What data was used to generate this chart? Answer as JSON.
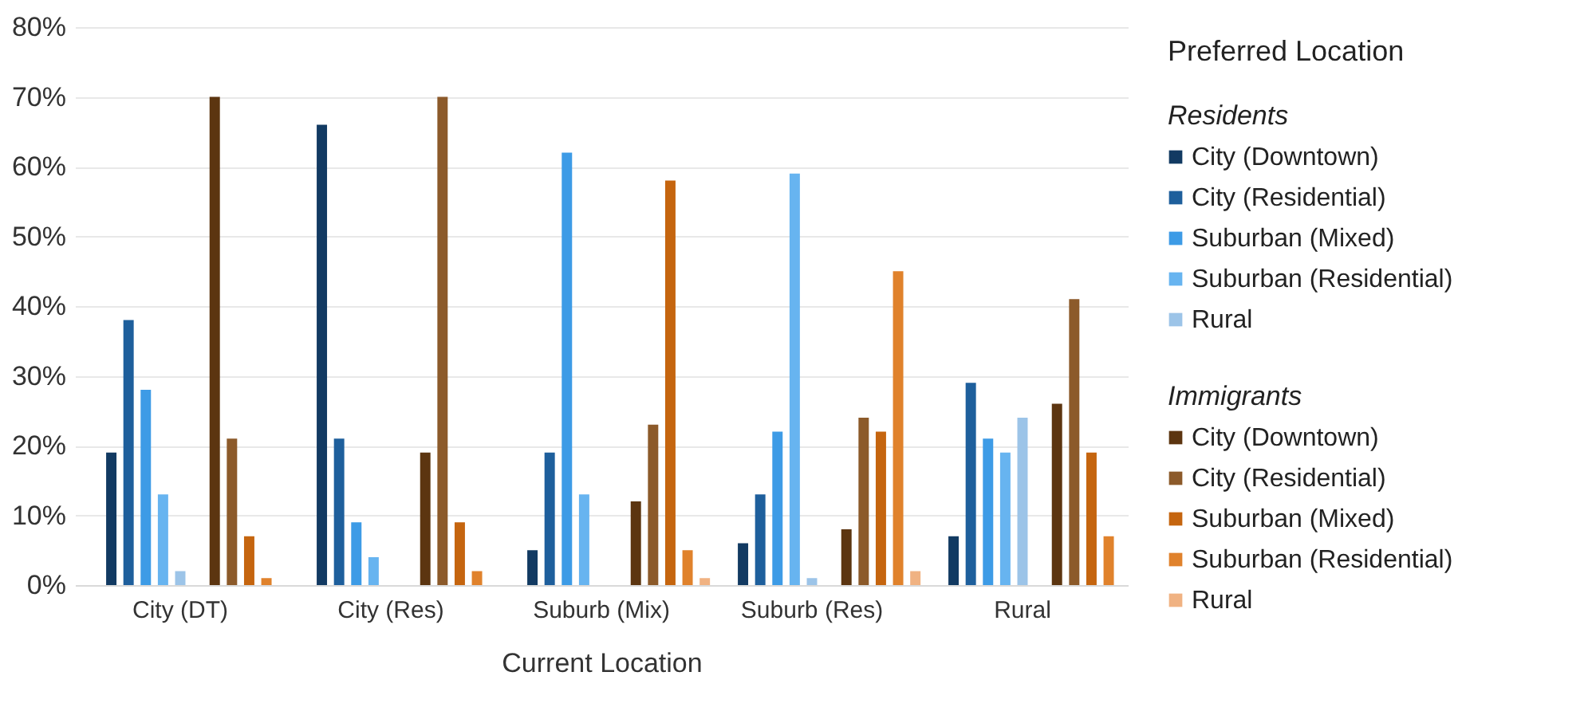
{
  "chart_data": {
    "type": "bar",
    "categories": [
      "City (DT)",
      "City (Res)",
      "Suburb (Mix)",
      "Suburb (Res)",
      "Rural"
    ],
    "xlabel": "Current Location",
    "legend_title": "Preferred Location",
    "annotations": [
      "Residents",
      "Immigrants"
    ],
    "series": [
      {
        "name": "City (Downtown)",
        "color": "#123a62",
        "values": [
          19,
          66,
          5,
          6,
          7
        ]
      },
      {
        "name": "City (Residential)",
        "color": "#1e5f9c",
        "values": [
          38,
          21,
          19,
          13,
          29
        ]
      },
      {
        "name": "Suburban (Mixed)",
        "color": "#3d9be6",
        "values": [
          28,
          9,
          62,
          22,
          21
        ]
      },
      {
        "name": "Suburban (Residential)",
        "color": "#67b4f0",
        "values": [
          13,
          4,
          13,
          59,
          19
        ]
      },
      {
        "name": "Rural",
        "color": "#9cc4e8",
        "values": [
          2,
          0,
          0,
          1,
          24
        ]
      },
      {
        "name": "City (Downtown)",
        "color": "#5c3510",
        "values": [
          70,
          19,
          12,
          8,
          26
        ]
      },
      {
        "name": "City (Residential)",
        "color": "#8c5a2a",
        "values": [
          21,
          70,
          23,
          24,
          41
        ]
      },
      {
        "name": "Suburban (Mixed)",
        "color": "#c5650f",
        "values": [
          7,
          9,
          58,
          22,
          19
        ]
      },
      {
        "name": "Suburban (Residential)",
        "color": "#e0822c",
        "values": [
          1,
          2,
          5,
          45,
          7
        ]
      },
      {
        "name": "Rural",
        "color": "#f0b282",
        "values": [
          0,
          0,
          1,
          2,
          0
        ]
      }
    ],
    "ylim": [
      0,
      80
    ],
    "yticks": [
      {
        "value": 0,
        "label": "0%"
      },
      {
        "value": 10,
        "label": "10%"
      },
      {
        "value": 20,
        "label": "20%"
      },
      {
        "value": 30,
        "label": "30%"
      },
      {
        "value": 40,
        "label": "40%"
      },
      {
        "value": 50,
        "label": "50%"
      },
      {
        "value": 60,
        "label": "60%"
      },
      {
        "value": 70,
        "label": "70%"
      },
      {
        "value": 80,
        "label": "80%"
      }
    ],
    "grid": "y",
    "legend": "right"
  }
}
